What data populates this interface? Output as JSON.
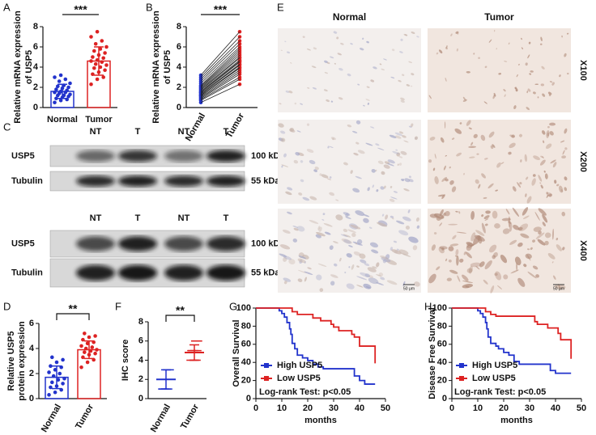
{
  "chart_data": [
    {
      "type": "bar",
      "panel": "A",
      "ylabel": [
        "Relative mRNA expression",
        "of USP5"
      ],
      "categories": [
        "Normal",
        "Tumor"
      ],
      "colors": [
        "#2233cc",
        "#dd2222"
      ],
      "values": [
        1.6,
        4.6
      ],
      "errors": [
        0.7,
        1.4
      ],
      "points": [
        [
          0.5,
          0.7,
          0.8,
          0.9,
          1.0,
          1.1,
          1.2,
          1.2,
          1.3,
          1.4,
          1.5,
          1.5,
          1.6,
          1.7,
          1.8,
          1.9,
          2.0,
          2.1,
          2.2,
          2.4,
          2.6,
          2.8,
          3.0,
          3.2
        ],
        [
          2.3,
          2.8,
          3.0,
          3.3,
          3.5,
          3.7,
          3.9,
          4.0,
          4.2,
          4.3,
          4.5,
          4.6,
          4.7,
          4.9,
          5.0,
          5.2,
          5.4,
          5.6,
          5.8,
          6.0,
          6.3,
          6.6,
          7.0,
          7.5
        ]
      ],
      "annotation": "***",
      "ylim": [
        0,
        8
      ],
      "yticks": [
        0,
        2,
        4,
        6,
        8
      ]
    },
    {
      "type": "paired",
      "panel": "B",
      "ylabel": [
        "Relative mRNA expression",
        "of USP5"
      ],
      "categories": [
        "Normal",
        "Tumor"
      ],
      "colors": [
        "#2233cc",
        "#dd2222"
      ],
      "points": [
        [
          0.5,
          0.7,
          0.8,
          0.9,
          1.0,
          1.1,
          1.2,
          1.2,
          1.3,
          1.4,
          1.5,
          1.5,
          1.6,
          1.7,
          1.8,
          1.9,
          2.0,
          2.1,
          2.2,
          2.4,
          2.6,
          2.8,
          3.0,
          3.2
        ],
        [
          2.3,
          2.8,
          3.0,
          3.3,
          3.5,
          3.7,
          3.9,
          4.0,
          4.2,
          4.3,
          4.5,
          4.6,
          4.7,
          4.9,
          5.0,
          5.2,
          5.4,
          5.6,
          5.8,
          6.0,
          6.3,
          6.6,
          7.0,
          7.5
        ]
      ],
      "annotation": "***",
      "ylim": [
        0,
        8
      ],
      "yticks": [
        0,
        2,
        4,
        6,
        8
      ]
    },
    {
      "type": "bar",
      "panel": "D",
      "ylabel": [
        "Relative USP5",
        "protein  expression"
      ],
      "categories": [
        "Normal",
        "Tumor"
      ],
      "colors": [
        "#2233cc",
        "#dd2222"
      ],
      "values": [
        1.7,
        3.9
      ],
      "errors": [
        0.9,
        0.7
      ],
      "points": [
        [
          0.3,
          0.5,
          0.7,
          0.9,
          1.0,
          1.2,
          1.3,
          1.5,
          1.6,
          1.8,
          2.0,
          2.1,
          2.3,
          2.5,
          2.6,
          2.9,
          3.1,
          3.3
        ],
        [
          2.5,
          2.9,
          3.1,
          3.3,
          3.5,
          3.6,
          3.7,
          3.8,
          3.9,
          4.0,
          4.1,
          4.2,
          4.4,
          4.5,
          4.7,
          4.9,
          5.0,
          5.2
        ]
      ],
      "annotation": "**",
      "ylim": [
        0,
        6
      ],
      "yticks": [
        0,
        2,
        4,
        6
      ]
    },
    {
      "type": "dot",
      "panel": "F",
      "ylabel": [
        "IHC score"
      ],
      "categories": [
        "Normal",
        "Tumor"
      ],
      "colors": [
        "#2233cc",
        "#dd2222"
      ],
      "values": [
        2,
        4.8
      ],
      "errors": [
        1,
        0.8
      ],
      "points": [
        [
          1,
          1,
          1,
          1,
          2,
          2,
          2,
          3,
          3
        ],
        [
          4,
          4,
          4,
          5,
          5,
          5,
          5,
          6,
          6
        ]
      ],
      "annotation": "**",
      "ylim": [
        0,
        8
      ],
      "yticks": [
        0,
        2,
        4,
        6,
        8
      ]
    },
    {
      "type": "survival",
      "panel": "G",
      "ylabel": [
        "Overall Survival"
      ],
      "xlabel": "months",
      "annotation": "Log-rank  Test: p<0.05",
      "xlim": [
        0,
        50
      ],
      "xticks": [
        0,
        10,
        20,
        30,
        40,
        50
      ],
      "ylim": [
        0,
        100
      ],
      "yticks": [
        0,
        20,
        40,
        60,
        80,
        100
      ],
      "series": [
        {
          "name": "High USP5",
          "color": "#2233cc",
          "x": [
            0,
            8,
            9,
            10,
            11,
            12,
            13,
            13.5,
            14,
            15,
            16,
            18,
            20,
            22,
            24,
            26,
            37,
            38,
            40,
            42,
            46
          ],
          "values": [
            100,
            100,
            97,
            94,
            90,
            84,
            77,
            71,
            61,
            55,
            48,
            45,
            42,
            38,
            35,
            33,
            33,
            25,
            20,
            16,
            16
          ]
        },
        {
          "name": "Low USP5",
          "color": "#dd2222",
          "x": [
            0,
            10,
            14,
            16,
            22,
            25,
            29,
            30,
            32,
            37,
            38,
            40,
            45,
            46
          ],
          "values": [
            100,
            100,
            96,
            93,
            89,
            86,
            82,
            79,
            75,
            71,
            68,
            58,
            58,
            39
          ]
        }
      ]
    },
    {
      "type": "survival",
      "panel": "H",
      "ylabel": [
        "Disease Free Survival"
      ],
      "xlabel": "months",
      "annotation": "Log-rank  Test: p<0.05",
      "xlim": [
        0,
        50
      ],
      "xticks": [
        0,
        10,
        20,
        30,
        40,
        50
      ],
      "ylim": [
        0,
        100
      ],
      "yticks": [
        0,
        20,
        40,
        60,
        80,
        100
      ],
      "series": [
        {
          "name": "High USP5",
          "color": "#2233cc",
          "x": [
            0,
            9,
            10,
            11,
            12,
            13,
            13.5,
            14,
            15,
            17,
            18,
            20,
            22,
            24,
            26,
            37,
            38,
            40,
            46
          ],
          "values": [
            100,
            100,
            97,
            94,
            90,
            84,
            77,
            68,
            61,
            58,
            55,
            51,
            48,
            41,
            38,
            38,
            31,
            28,
            28
          ]
        },
        {
          "name": "Low USP5",
          "color": "#dd2222",
          "x": [
            0,
            11,
            13,
            15,
            17,
            31,
            32,
            33,
            37,
            40,
            41,
            42,
            45,
            46
          ],
          "values": [
            100,
            100,
            96,
            93,
            91,
            91,
            85,
            82,
            78,
            78,
            72,
            65,
            65,
            44
          ]
        }
      ]
    }
  ],
  "blot": {
    "panel": "C",
    "groups": [
      {
        "lanes": [
          "NT",
          "T",
          "NT",
          "T"
        ],
        "rows": [
          {
            "name": "USP5",
            "size": "100 kDa"
          },
          {
            "name": "Tubulin",
            "size": "55 kDa"
          }
        ]
      },
      {
        "lanes": [
          "NT",
          "T",
          "NT",
          "T"
        ],
        "rows": [
          {
            "name": "USP5",
            "size": "100 kDa"
          },
          {
            "name": "Tubulin",
            "size": "55 kDa"
          }
        ]
      }
    ]
  },
  "ihc": {
    "panel": "E",
    "columns": [
      "Normal",
      "Tumor"
    ],
    "rows": [
      "X100",
      "X200",
      "X400"
    ],
    "scale_bar": "50 μm"
  }
}
